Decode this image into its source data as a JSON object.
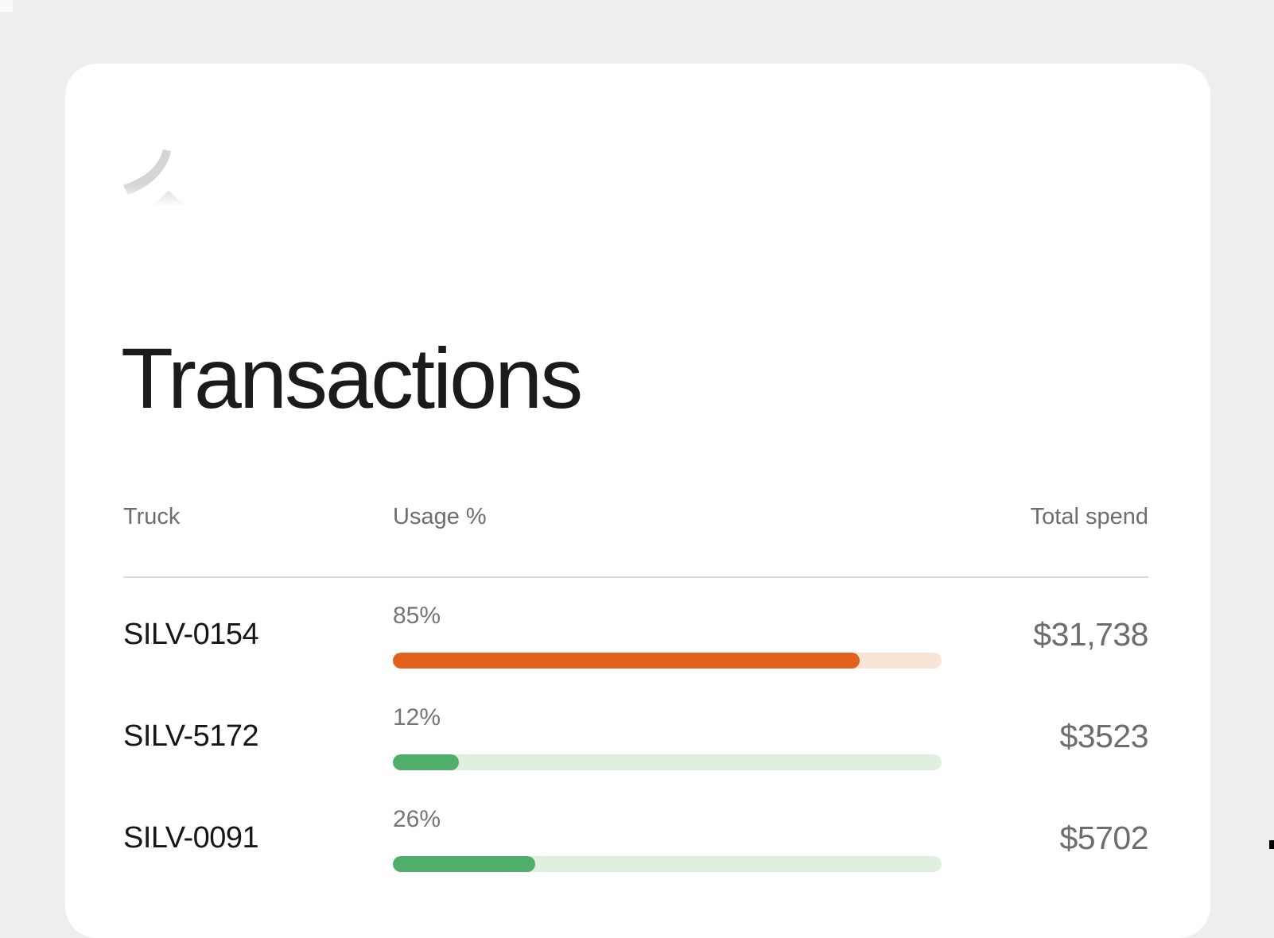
{
  "title": "Transactions",
  "logo": {
    "name": "brand-swoosh-logo",
    "color": "#d6d5d3"
  },
  "colors": {
    "background": "#efeeed",
    "card": "#ffffff",
    "title_text": "#1b1b1a",
    "header_text": "#6d6d6d",
    "divider": "#dadada",
    "orange_accent": "#e2611c",
    "green_accent": "#4fae68"
  },
  "table": {
    "columns": [
      {
        "key": "truck",
        "label": "Truck"
      },
      {
        "key": "usage",
        "label": "Usage %"
      },
      {
        "key": "spend",
        "label": "Total spend"
      }
    ],
    "rows": [
      {
        "truck": "SILV-0154",
        "usage_pct": 85,
        "usage_label": "85%",
        "spend": "$31,738",
        "bar_color": "#e2611c",
        "track_color": "#f8e5d8"
      },
      {
        "truck": "SILV-5172",
        "usage_pct": 12,
        "usage_label": "12%",
        "spend": "$3523",
        "bar_color": "#4fae68",
        "track_color": "#e0efe0"
      },
      {
        "truck": "SILV-0091",
        "usage_pct": 26,
        "usage_label": "26%",
        "spend": "$5702",
        "bar_color": "#4fae68",
        "track_color": "#e0efe0"
      }
    ]
  }
}
